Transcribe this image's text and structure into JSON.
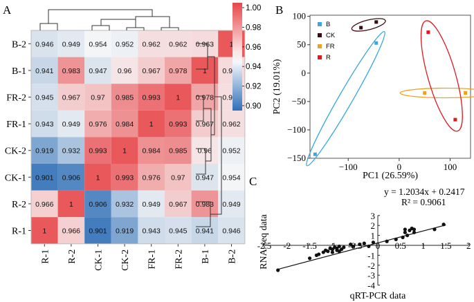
{
  "panels": {
    "a": "A",
    "b": "B",
    "c": "C"
  },
  "chart_data": [
    {
      "type": "heatmap",
      "panel": "A",
      "rows": [
        "B-2",
        "B-1",
        "FR-2",
        "FR-1",
        "CK-2",
        "CK-1",
        "R-2",
        "R-1"
      ],
      "columns": [
        "R-1",
        "R-2",
        "CK-1",
        "CK-2",
        "FR-1",
        "FR-2",
        "B-1",
        "B-2"
      ],
      "values": [
        [
          0.946,
          0.949,
          0.954,
          0.952,
          0.962,
          0.962,
          0.963,
          1
        ],
        [
          0.941,
          0.983,
          0.947,
          0.96,
          0.967,
          0.978,
          1,
          0.963
        ],
        [
          0.945,
          0.967,
          0.97,
          0.985,
          0.993,
          1,
          0.978,
          0.962
        ],
        [
          0.943,
          0.949,
          0.976,
          0.984,
          1,
          0.993,
          0.967,
          0.962
        ],
        [
          0.919,
          0.932,
          0.993,
          1,
          0.984,
          0.985,
          0.96,
          0.952
        ],
        [
          0.901,
          0.906,
          1,
          0.993,
          0.976,
          0.97,
          0.947,
          0.954
        ],
        [
          0.966,
          1,
          0.906,
          0.932,
          0.949,
          0.967,
          0.983,
          0.949
        ],
        [
          1,
          0.966,
          0.901,
          0.919,
          0.943,
          0.945,
          0.941,
          0.946
        ]
      ],
      "value_labels": [
        [
          "0.946",
          "0.949",
          "0.954",
          "0.952",
          "0.962",
          "0.962",
          "0.963",
          "1"
        ],
        [
          "0.941",
          "0.983",
          "0.947",
          "0.96",
          "0.967",
          "0.978",
          "1",
          "0.963"
        ],
        [
          "0.945",
          "0.967",
          "0.97",
          "0.985",
          "0.993",
          "1",
          "0.978",
          "0.962"
        ],
        [
          "0.943",
          "0.949",
          "0.976",
          "0.984",
          "1",
          "0.993",
          "0.967",
          "0.962"
        ],
        [
          "0.919",
          "0.932",
          "0.993",
          "1",
          "0.984",
          "0.985",
          "0.96",
          "0.952"
        ],
        [
          "0.901",
          "0.906",
          "1",
          "0.993",
          "0.976",
          "0.97",
          "0.947",
          "0.954"
        ],
        [
          "0.966",
          "1",
          "0.906",
          "0.932",
          "0.949",
          "0.967",
          "0.983",
          "0.949"
        ],
        [
          "1",
          "0.966",
          "0.901",
          "0.919",
          "0.943",
          "0.945",
          "0.941",
          "0.946"
        ]
      ],
      "colorbar": {
        "range": [
          0.895,
          1.005
        ],
        "ticks": [
          1.0,
          0.98,
          0.96,
          0.94,
          0.92,
          0.9
        ],
        "tick_labels": [
          "1.00",
          "0.98",
          "0.96",
          "0.94",
          "0.92",
          "0.90"
        ],
        "colors": {
          "low": "#2f6fb7",
          "mid": "#f7f7f7",
          "high": "#e8474a"
        }
      },
      "dendrograms": {
        "top": true,
        "right": true
      }
    },
    {
      "type": "scatter",
      "panel": "B",
      "xlabel": "PC1 (26.59%)",
      "ylabel": "PC2 (19.01%)",
      "xlim": [
        -175,
        140
      ],
      "ylim": [
        -150,
        102
      ],
      "xticks": [
        -100,
        0,
        100
      ],
      "xtick_labels": [
        "−100",
        "0",
        "100"
      ],
      "yticks": [
        100,
        50,
        0,
        -50,
        -100,
        -150
      ],
      "ytick_labels": [
        "100",
        "50",
        "0",
        "−50",
        "−100",
        "−150"
      ],
      "legend": {
        "position": "top-left",
        "entries": [
          "B",
          "CK",
          "FR",
          "R"
        ]
      },
      "series": [
        {
          "name": "B",
          "color": "#3aa7e0",
          "points": [
            [
              -45,
              53
            ],
            [
              -165,
              -143
            ]
          ]
        },
        {
          "name": "CK",
          "color": "#3c0d10",
          "points": [
            [
              -75,
              80
            ],
            [
              -45,
              90
            ]
          ]
        },
        {
          "name": "FR",
          "color": "#f0a020",
          "points": [
            [
              50,
              -35
            ],
            [
              130,
              -35
            ]
          ]
        },
        {
          "name": "R",
          "color": "#e0181f",
          "points": [
            [
              57,
              72
            ],
            [
              110,
              -82
            ]
          ]
        }
      ]
    },
    {
      "type": "scatter",
      "panel": "C",
      "xlabel": "qRT-PCR data",
      "ylabel": "RNA-seq data",
      "xlim": [
        -2.5,
        2
      ],
      "ylim": [
        -4,
        3
      ],
      "xticks": [
        -2.5,
        -2,
        -1.5,
        -1,
        -0.5,
        0,
        0.5,
        1,
        1.5,
        2
      ],
      "xtick_labels": [
        "-2.5",
        "-2",
        "-1.5",
        "-1",
        "-0.5",
        "0",
        "0.5",
        "1",
        "1.5",
        "2"
      ],
      "yticks": [
        3,
        2,
        1,
        0,
        -1,
        -2,
        -3,
        -4
      ],
      "ytick_labels": [
        "3",
        "2",
        "1",
        "0",
        "-1",
        "-2",
        "-3",
        "-4"
      ],
      "equation": "y = 1.2034x + 0.2417",
      "r_squared": "R² = 0.9061",
      "fit": {
        "slope": 1.2034,
        "intercept": 0.2417,
        "x_range": [
          -2.2,
          1.5
        ]
      },
      "points": [
        [
          -2.2,
          -2.5
        ],
        [
          -1.5,
          -1.3
        ],
        [
          -1.35,
          -1.0
        ],
        [
          -1.3,
          -0.9
        ],
        [
          -1.2,
          -0.7
        ],
        [
          -1.15,
          -0.5
        ],
        [
          -1.1,
          -0.6
        ],
        [
          -1.05,
          -0.3
        ],
        [
          -1.0,
          -0.4
        ],
        [
          -1.0,
          -0.7
        ],
        [
          -0.95,
          -0.2
        ],
        [
          -0.9,
          -0.5
        ],
        [
          -0.9,
          -0.3
        ],
        [
          -0.85,
          -0.1
        ],
        [
          -0.85,
          -0.6
        ],
        [
          -0.8,
          -0.4
        ],
        [
          -0.75,
          -0.2
        ],
        [
          -0.6,
          0.1
        ],
        [
          -0.55,
          -0.1
        ],
        [
          -0.4,
          0.1
        ],
        [
          -0.3,
          0.2
        ],
        [
          -0.2,
          -0.1
        ],
        [
          -0.1,
          0.3
        ],
        [
          0.2,
          0.4
        ],
        [
          0.4,
          0.6
        ],
        [
          0.55,
          0.8
        ],
        [
          0.6,
          1.3
        ],
        [
          0.6,
          1.6
        ],
        [
          0.65,
          1.0
        ],
        [
          0.7,
          1.5
        ],
        [
          0.75,
          1.7
        ],
        [
          0.8,
          1.3
        ],
        [
          0.8,
          1.6
        ],
        [
          1.25,
          1.6
        ],
        [
          1.45,
          2.1
        ]
      ]
    }
  ]
}
